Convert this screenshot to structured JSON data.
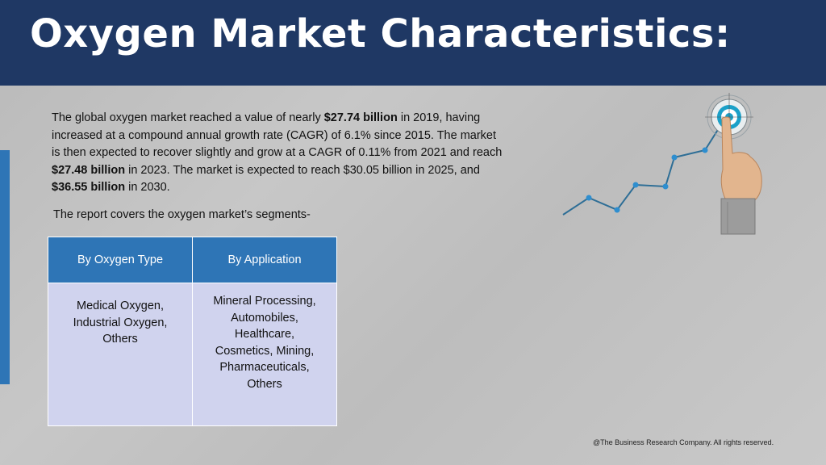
{
  "slide": {
    "title": "Oxygen Market Characteristics:",
    "intro": {
      "p1": "The global oxygen market reached a value of nearly ",
      "b1": "$27.74 billion",
      "p2": " in 2019, having increased at a compound annual growth rate (CAGR) of 6.1% since 2015. The market is then expected to recover slightly and grow at a CAGR of 0.11% from 2021 and reach ",
      "b2": "$27.48 billion",
      "p3": " in 2023.  The market is expected to reach $30.05 billion in 2025, and ",
      "b3": "$36.55 billion",
      "p4": " in 2030."
    },
    "segments_intro": "The report covers the oxygen market’s segments-",
    "table": {
      "headers": [
        "By Oxygen Type",
        "By Application"
      ],
      "cells": [
        "Medical Oxygen,\nIndustrial Oxygen,\nOthers",
        "Mineral Processing,\nAutomobiles,\nHealthcare,\nCosmetics, Mining,\nPharmaceuticals,\nOthers"
      ]
    },
    "footer": "@The Business Research Company. All rights reserved."
  },
  "colors": {
    "header_bg": "#1f3864",
    "accent_blue": "#2e75b6",
    "cell_bg": "#d0d3ee",
    "chart_line": "#2e6e96"
  },
  "icons": [
    "growth-chart-icon",
    "hand-pointing-icon",
    "target-icon"
  ]
}
